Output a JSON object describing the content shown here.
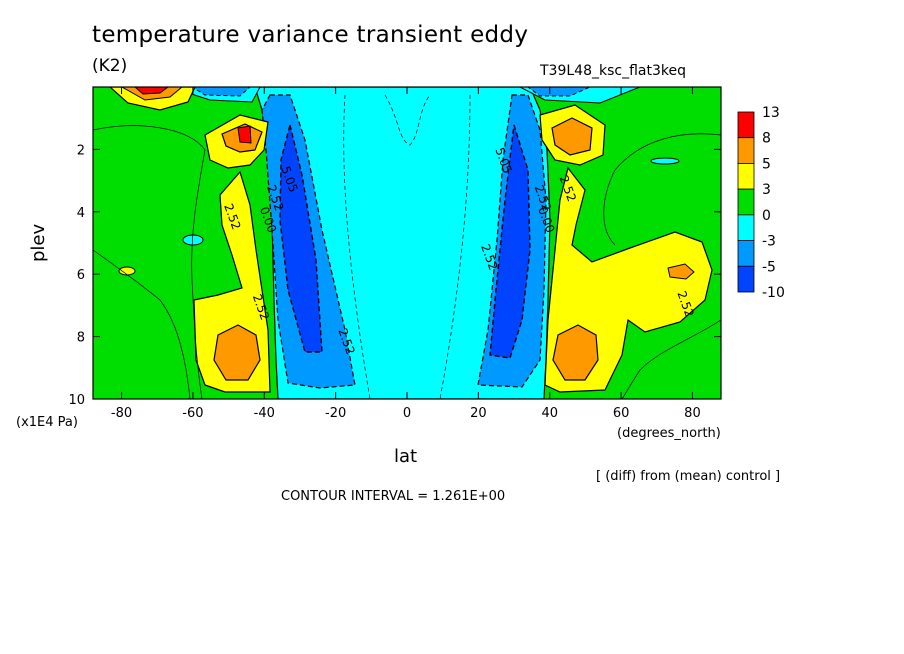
{
  "figure": {
    "title": "temperature variance transient eddy",
    "units_label": "(K2)",
    "run_label": "T39L48_ksc_flat3keq",
    "xlabel": "lat",
    "x_unit": "(degrees_north)",
    "ylabel": "plev",
    "y_unit": "(x1E4 Pa)",
    "diff_note": "[ (diff) from (mean) control ]",
    "contour_interval": "CONTOUR INTERVAL = 1.261E+00"
  },
  "chart_data": {
    "type": "heatmap",
    "title": "temperature variance transient eddy",
    "xlabel": "lat",
    "ylabel": "plev",
    "xlim": [
      -88,
      88
    ],
    "ylim": [
      10,
      0
    ],
    "x_ticks": [
      -80,
      -60,
      -40,
      -20,
      0,
      20,
      40,
      60,
      80
    ],
    "y_ticks": [
      2,
      4,
      6,
      8,
      10
    ],
    "colorbar": {
      "levels": [
        "13",
        "8",
        "5",
        "3",
        "0",
        "-3",
        "-5",
        "-10"
      ],
      "colors": [
        "#ff0000",
        "#ff9900",
        "#ffff00",
        "#00dd00",
        "#00ffff",
        "#0099ff",
        "#0044ff"
      ]
    },
    "contour_labels": [
      {
        "text": "5.05",
        "lat": -34,
        "plev": 3.0
      },
      {
        "text": "2.52",
        "lat": -38,
        "plev": 3.6
      },
      {
        "text": "0.00",
        "lat": -40,
        "plev": 4.3
      },
      {
        "text": "2.52",
        "lat": -50,
        "plev": 4.2
      },
      {
        "text": "2.52",
        "lat": -42,
        "plev": 7.1
      },
      {
        "text": "2.52",
        "lat": -18,
        "plev": 8.2
      },
      {
        "text": "5.05",
        "lat": 26,
        "plev": 2.4
      },
      {
        "text": "2.52",
        "lat": 37,
        "plev": 3.6
      },
      {
        "text": "0.00",
        "lat": 38,
        "plev": 4.3
      },
      {
        "text": "2.52",
        "lat": 44,
        "plev": 3.3
      },
      {
        "text": "2.52",
        "lat": 22,
        "plev": 5.5
      },
      {
        "text": "2.52",
        "lat": 77,
        "plev": 7.0
      }
    ]
  }
}
